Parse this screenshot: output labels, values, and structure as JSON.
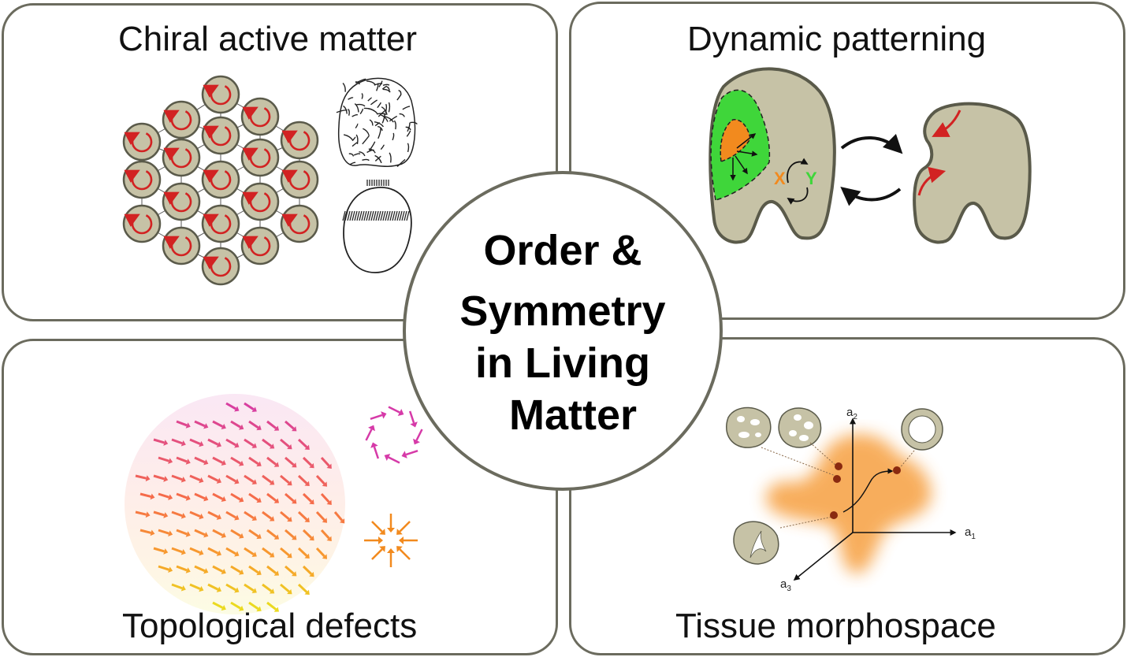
{
  "panels": {
    "top_left": {
      "title": "Chiral active matter"
    },
    "top_right": {
      "title": "Dynamic patterning",
      "labels": {
        "x": "X",
        "y": "Y"
      }
    },
    "bottom_left": {
      "title": "Topological defects"
    },
    "bottom_right": {
      "title": "Tissue morphospace",
      "axes": {
        "a1": "a",
        "a1_sub": "1",
        "a2": "a",
        "a2_sub": "2",
        "a3": "a",
        "a3_sub": "3"
      }
    }
  },
  "center": {
    "line1": "Order &",
    "line2": "Symmetry",
    "line3": "in Living",
    "line4": "Matter"
  },
  "colors": {
    "border": "#6b6b5e",
    "cell_fill": "#c6c2a6",
    "rotation_arrow": "#d22222",
    "orange": "#f28a1e",
    "green": "#3fd63a",
    "magenta": "#d63aa8",
    "blob": "#f7b062"
  }
}
